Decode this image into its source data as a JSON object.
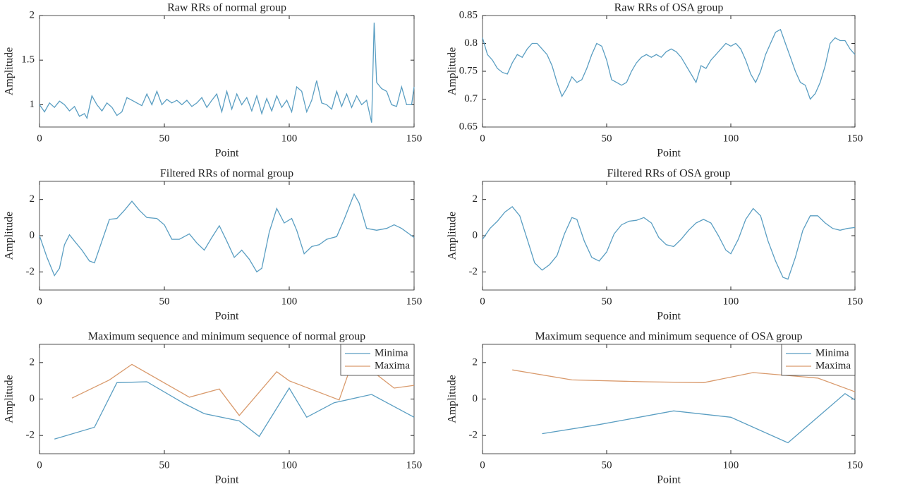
{
  "chart_data": [
    {
      "type": "line",
      "title": "Raw RRs of normal group",
      "xlabel": "Point",
      "ylabel": "Amplitude",
      "xlim": [
        0,
        150
      ],
      "xticks": [
        0,
        50,
        100,
        150
      ],
      "ylim": [
        0.75,
        2
      ],
      "yticks": [
        1,
        1.5,
        2
      ],
      "color": "#5a9ec2",
      "x": [
        0,
        2,
        4,
        6,
        8,
        10,
        12,
        14,
        16,
        18,
        19,
        21,
        23,
        25,
        27,
        29,
        31,
        33,
        35,
        37,
        39,
        41,
        43,
        45,
        47,
        49,
        51,
        53,
        55,
        57,
        59,
        61,
        63,
        65,
        67,
        69,
        71,
        73,
        75,
        77,
        79,
        81,
        83,
        85,
        87,
        89,
        91,
        93,
        95,
        97,
        99,
        101,
        103,
        105,
        107,
        109,
        111,
        113,
        115,
        117,
        119,
        121,
        123,
        125,
        127,
        129,
        131,
        133,
        134,
        135,
        137,
        139,
        141,
        143,
        145,
        147,
        149,
        150
      ],
      "values": [
        1.0,
        0.92,
        1.02,
        0.97,
        1.04,
        1.0,
        0.93,
        0.98,
        0.87,
        0.9,
        0.85,
        1.1,
        1.0,
        0.93,
        1.02,
        0.97,
        0.88,
        0.92,
        1.08,
        1.05,
        1.02,
        0.99,
        1.12,
        1.0,
        1.15,
        1.0,
        1.06,
        1.02,
        1.05,
        1.0,
        1.05,
        0.98,
        1.02,
        1.08,
        0.97,
        1.05,
        1.12,
        0.92,
        1.15,
        0.95,
        1.12,
        1.0,
        1.08,
        0.93,
        1.1,
        0.9,
        1.07,
        0.93,
        1.1,
        0.97,
        1.05,
        0.92,
        1.2,
        1.15,
        0.92,
        1.05,
        1.27,
        1.02,
        1.0,
        0.95,
        1.15,
        0.98,
        1.12,
        0.97,
        1.1,
        1.0,
        1.05,
        0.8,
        1.92,
        1.25,
        1.18,
        1.15,
        1.0,
        0.98,
        1.2,
        1.0,
        1.0,
        1.2
      ]
    },
    {
      "type": "line",
      "title": "Raw RRs of OSA group",
      "xlabel": "Point",
      "ylabel": "Amplitude",
      "xlim": [
        0,
        150
      ],
      "xticks": [
        0,
        50,
        100,
        150
      ],
      "ylim": [
        0.65,
        0.85
      ],
      "yticks": [
        0.65,
        0.7,
        0.75,
        0.8,
        0.85
      ],
      "color": "#5a9ec2",
      "x": [
        0,
        2,
        4,
        6,
        8,
        10,
        12,
        14,
        16,
        18,
        20,
        22,
        24,
        26,
        28,
        30,
        32,
        34,
        36,
        38,
        40,
        42,
        44,
        46,
        48,
        50,
        52,
        54,
        56,
        58,
        60,
        62,
        64,
        66,
        68,
        70,
        72,
        74,
        76,
        78,
        80,
        82,
        84,
        86,
        88,
        90,
        92,
        94,
        96,
        98,
        100,
        102,
        104,
        106,
        108,
        110,
        112,
        114,
        116,
        118,
        120,
        122,
        124,
        126,
        128,
        130,
        132,
        134,
        136,
        138,
        140,
        142,
        144,
        146,
        148,
        150
      ],
      "values": [
        0.81,
        0.78,
        0.77,
        0.755,
        0.748,
        0.745,
        0.765,
        0.78,
        0.775,
        0.79,
        0.8,
        0.8,
        0.79,
        0.78,
        0.76,
        0.73,
        0.705,
        0.72,
        0.74,
        0.73,
        0.735,
        0.755,
        0.78,
        0.8,
        0.795,
        0.77,
        0.735,
        0.73,
        0.725,
        0.73,
        0.75,
        0.765,
        0.775,
        0.78,
        0.775,
        0.78,
        0.775,
        0.785,
        0.79,
        0.785,
        0.775,
        0.76,
        0.745,
        0.73,
        0.76,
        0.755,
        0.77,
        0.78,
        0.79,
        0.8,
        0.795,
        0.8,
        0.79,
        0.77,
        0.745,
        0.73,
        0.75,
        0.78,
        0.8,
        0.82,
        0.825,
        0.8,
        0.775,
        0.75,
        0.73,
        0.725,
        0.7,
        0.71,
        0.73,
        0.76,
        0.8,
        0.81,
        0.805,
        0.805,
        0.79,
        0.78
      ]
    },
    {
      "type": "line",
      "title": "Filtered RRs of normal group",
      "xlabel": "Point",
      "ylabel": "Amplitude",
      "xlim": [
        0,
        150
      ],
      "xticks": [
        0,
        50,
        100,
        150
      ],
      "ylim": [
        -3,
        3
      ],
      "yticks": [
        -2,
        0,
        2
      ],
      "color": "#5a9ec2",
      "x": [
        0,
        3,
        6,
        8,
        10,
        12,
        14,
        17,
        20,
        22,
        25,
        28,
        31,
        34,
        37,
        40,
        43,
        47,
        50,
        53,
        56,
        60,
        63,
        66,
        69,
        72,
        75,
        78,
        81,
        84,
        87,
        89,
        92,
        95,
        98,
        101,
        103,
        106,
        109,
        112,
        115,
        119,
        122,
        126,
        128,
        131,
        135,
        139,
        142,
        145,
        148,
        150
      ],
      "values": [
        0,
        -1.2,
        -2.2,
        -1.8,
        -0.5,
        0.05,
        -0.3,
        -0.8,
        -1.4,
        -1.5,
        -0.3,
        0.9,
        0.95,
        1.4,
        1.9,
        1.4,
        1.0,
        0.95,
        0.6,
        -0.2,
        -0.2,
        0.1,
        -0.4,
        -0.8,
        -0.1,
        0.55,
        -0.3,
        -1.2,
        -0.8,
        -1.3,
        -2.0,
        -1.8,
        0.2,
        1.5,
        0.7,
        0.95,
        0.3,
        -1.0,
        -0.6,
        -0.5,
        -0.2,
        -0.05,
        0.9,
        2.3,
        1.8,
        0.4,
        0.3,
        0.4,
        0.6,
        0.4,
        0.1,
        -0.1
      ]
    },
    {
      "type": "line",
      "title": "Filtered RRs of OSA group",
      "xlabel": "Point",
      "ylabel": "Amplitude",
      "xlim": [
        0,
        150
      ],
      "xticks": [
        0,
        50,
        100,
        150
      ],
      "ylim": [
        -3,
        3
      ],
      "yticks": [
        -2,
        0,
        2
      ],
      "color": "#5a9ec2",
      "x": [
        0,
        3,
        6,
        9,
        12,
        15,
        18,
        21,
        24,
        27,
        30,
        33,
        36,
        38,
        41,
        44,
        47,
        50,
        53,
        56,
        59,
        62,
        65,
        68,
        71,
        74,
        77,
        80,
        83,
        86,
        89,
        92,
        95,
        98,
        100,
        103,
        106,
        109,
        112,
        115,
        118,
        121,
        123,
        126,
        129,
        132,
        135,
        138,
        141,
        144,
        147,
        150
      ],
      "values": [
        -0.2,
        0.4,
        0.8,
        1.3,
        1.6,
        1.1,
        -0.2,
        -1.5,
        -1.9,
        -1.6,
        -1.1,
        0.1,
        1.0,
        0.9,
        -0.3,
        -1.2,
        -1.4,
        -0.9,
        0.1,
        0.6,
        0.8,
        0.85,
        1.0,
        0.7,
        -0.1,
        -0.5,
        -0.6,
        -0.2,
        0.3,
        0.7,
        0.9,
        0.7,
        0.0,
        -0.8,
        -1.0,
        -0.2,
        0.9,
        1.5,
        1.1,
        -0.3,
        -1.4,
        -2.3,
        -2.4,
        -1.2,
        0.3,
        1.1,
        1.1,
        0.7,
        0.4,
        0.3,
        0.4,
        0.45
      ]
    },
    {
      "type": "line",
      "title": "Maximum sequence and minimum sequence of normal group",
      "xlabel": "Point",
      "ylabel": "Amplitude",
      "xlim": [
        0,
        150
      ],
      "xticks": [
        0,
        50,
        100,
        150
      ],
      "ylim": [
        -3,
        3
      ],
      "yticks": [
        -2,
        0,
        2
      ],
      "legend": "upper right",
      "series": [
        {
          "name": "Minima",
          "color": "#5a9ec2",
          "x": [
            6,
            22,
            31,
            43,
            58,
            66,
            80,
            88,
            100,
            107,
            118,
            133,
            150
          ],
          "values": [
            -2.2,
            -1.55,
            0.9,
            0.95,
            -0.25,
            -0.8,
            -1.2,
            -2.05,
            0.6,
            -1.0,
            -0.2,
            0.25,
            -1.0
          ]
        },
        {
          "name": "Maxima",
          "color": "#d99a6c",
          "x": [
            13,
            28,
            37,
            60,
            72,
            80,
            95,
            100,
            120,
            126,
            142,
            150
          ],
          "values": [
            0.05,
            1.05,
            1.9,
            0.1,
            0.55,
            -0.9,
            1.5,
            1.0,
            -0.05,
            2.3,
            0.6,
            0.75
          ]
        }
      ]
    },
    {
      "type": "line",
      "title": "Maximum sequence and minimum sequence of OSA group",
      "xlabel": "Point",
      "ylabel": "Amplitude",
      "xlim": [
        0,
        150
      ],
      "xticks": [
        0,
        50,
        100,
        150
      ],
      "ylim": [
        -3,
        3
      ],
      "yticks": [
        -2,
        0,
        2
      ],
      "legend": "upper right",
      "series": [
        {
          "name": "Minima",
          "color": "#5a9ec2",
          "x": [
            24,
            47,
            77,
            100,
            123,
            146,
            150
          ],
          "values": [
            -1.9,
            -1.4,
            -0.65,
            -1.0,
            -2.4,
            0.3,
            -0.05
          ]
        },
        {
          "name": "Maxima",
          "color": "#d99a6c",
          "x": [
            12,
            36,
            65,
            89,
            109,
            135,
            150
          ],
          "values": [
            1.6,
            1.05,
            0.95,
            0.9,
            1.45,
            1.15,
            0.4
          ]
        }
      ]
    }
  ]
}
